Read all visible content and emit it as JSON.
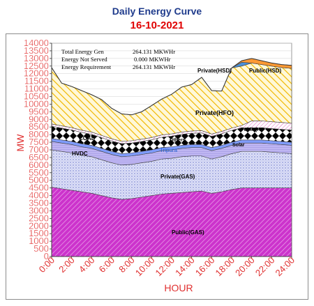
{
  "chart_data": {
    "type": "area",
    "title": "Daily Energy Curve",
    "subtitle": "16-10-2021",
    "xlabel": "HOUR",
    "ylabel": "MW",
    "ylim": [
      0,
      14000
    ],
    "yticks": [
      "0",
      "500",
      "1000",
      "1500",
      "2000",
      "2500",
      "3000",
      "3500",
      "4000",
      "4500",
      "5000",
      "5500",
      "6000",
      "6500",
      "7000",
      "7500",
      "8000",
      "8500",
      "9000",
      "9500",
      "10000",
      "10500",
      "11000",
      "11500",
      "12000",
      "12500",
      "13000",
      "13500",
      "14000"
    ],
    "xticks": [
      "0:00",
      "2:00",
      "4:00",
      "6:00",
      "8:00",
      "10:00",
      "12:00",
      "14:00",
      "16:00",
      "18:00",
      "20:00",
      "22:00",
      "24:00"
    ],
    "x": [
      0,
      1,
      2,
      3,
      4,
      5,
      6,
      7,
      8,
      9,
      10,
      11,
      12,
      13,
      14,
      15,
      16,
      17,
      18,
      19,
      20,
      21,
      22,
      23,
      24
    ],
    "annotations": [
      {
        "label": "Total Energy Gen",
        "value": "264.131 MKWHr"
      },
      {
        "label": "Energy Not Served",
        "value": "0.000 MKWHr"
      },
      {
        "label": "Energy Requirement",
        "value": "264.131 MKWHr"
      }
    ],
    "series": [
      {
        "name": "Public(GAS)",
        "color": "#cc33cc",
        "values": [
          4550,
          4450,
          4350,
          4250,
          4150,
          4000,
          3850,
          3750,
          3800,
          3900,
          4000,
          4100,
          4150,
          4200,
          4250,
          4300,
          4150,
          4250,
          4400,
          4500,
          4500,
          4500,
          4500,
          4500,
          4500
        ]
      },
      {
        "name": "Private(GAS)",
        "color": "#c8ccf0",
        "values": [
          2450,
          2450,
          2450,
          2400,
          2400,
          2350,
          2300,
          2250,
          2250,
          2250,
          2250,
          2300,
          2300,
          2350,
          2350,
          2300,
          2250,
          2300,
          2350,
          2400,
          2400,
          2400,
          2350,
          2300,
          2250
        ]
      },
      {
        "name": "HVDC",
        "color": "#b8b0f0",
        "values": [
          550,
          550,
          550,
          550,
          550,
          550,
          550,
          550,
          550,
          550,
          550,
          550,
          550,
          550,
          550,
          550,
          550,
          550,
          550,
          550,
          550,
          550,
          550,
          550,
          550
        ]
      },
      {
        "name": "Tripura",
        "color": "#7090ff",
        "values": [
          200,
          200,
          200,
          200,
          200,
          200,
          200,
          200,
          200,
          200,
          200,
          200,
          200,
          200,
          200,
          200,
          200,
          200,
          200,
          200,
          200,
          200,
          200,
          200,
          200
        ]
      },
      {
        "name": "COAL",
        "color": "#000000",
        "values": [
          800,
          780,
          760,
          740,
          720,
          700,
          680,
          660,
          650,
          650,
          660,
          680,
          700,
          720,
          740,
          760,
          740,
          760,
          780,
          800,
          800,
          800,
          800,
          800,
          800
        ]
      },
      {
        "name": "Public(HF",
        "color": "#ff80d0",
        "values": [
          150,
          150,
          150,
          150,
          150,
          150,
          150,
          150,
          150,
          150,
          150,
          150,
          150,
          150,
          150,
          150,
          150,
          150,
          150,
          150,
          450,
          450,
          450,
          450,
          450
        ]
      },
      {
        "name": "Private(HFO)",
        "color": "#f5c518",
        "values": [
          3700,
          2800,
          2700,
          2600,
          2450,
          2350,
          2000,
          1800,
          1700,
          1800,
          2100,
          2350,
          2600,
          2950,
          3050,
          3500,
          2850,
          2650,
          3950,
          3900,
          3800,
          3700,
          3650,
          3600,
          3600
        ]
      },
      {
        "name": "Private(HSD)",
        "color": "#4a90d9",
        "values": [
          0,
          0,
          0,
          0,
          0,
          0,
          0,
          0,
          0,
          0,
          0,
          0,
          0,
          0,
          0,
          0,
          0,
          0,
          0,
          250,
          0,
          0,
          0,
          0,
          0
        ]
      },
      {
        "name": "Public(HSD)",
        "color": "#ff9933",
        "values": [
          0,
          0,
          0,
          0,
          0,
          0,
          0,
          0,
          0,
          0,
          0,
          0,
          0,
          0,
          0,
          0,
          0,
          0,
          0,
          100,
          300,
          250,
          200,
          200,
          200
        ]
      }
    ],
    "labels": {
      "coal": "COAL",
      "hvdc": "HVDC",
      "tripura": "Tripura",
      "private_gas": "Private(GAS)",
      "public_gas": "Public(GAS)",
      "private_hfo": "Private(HFO)",
      "private_hsd": "Private(HSD)",
      "public_hsd": "Public(HSD)",
      "public_hf": "Public(HF",
      "other_a": "Others",
      "other_b": "Solar"
    }
  }
}
